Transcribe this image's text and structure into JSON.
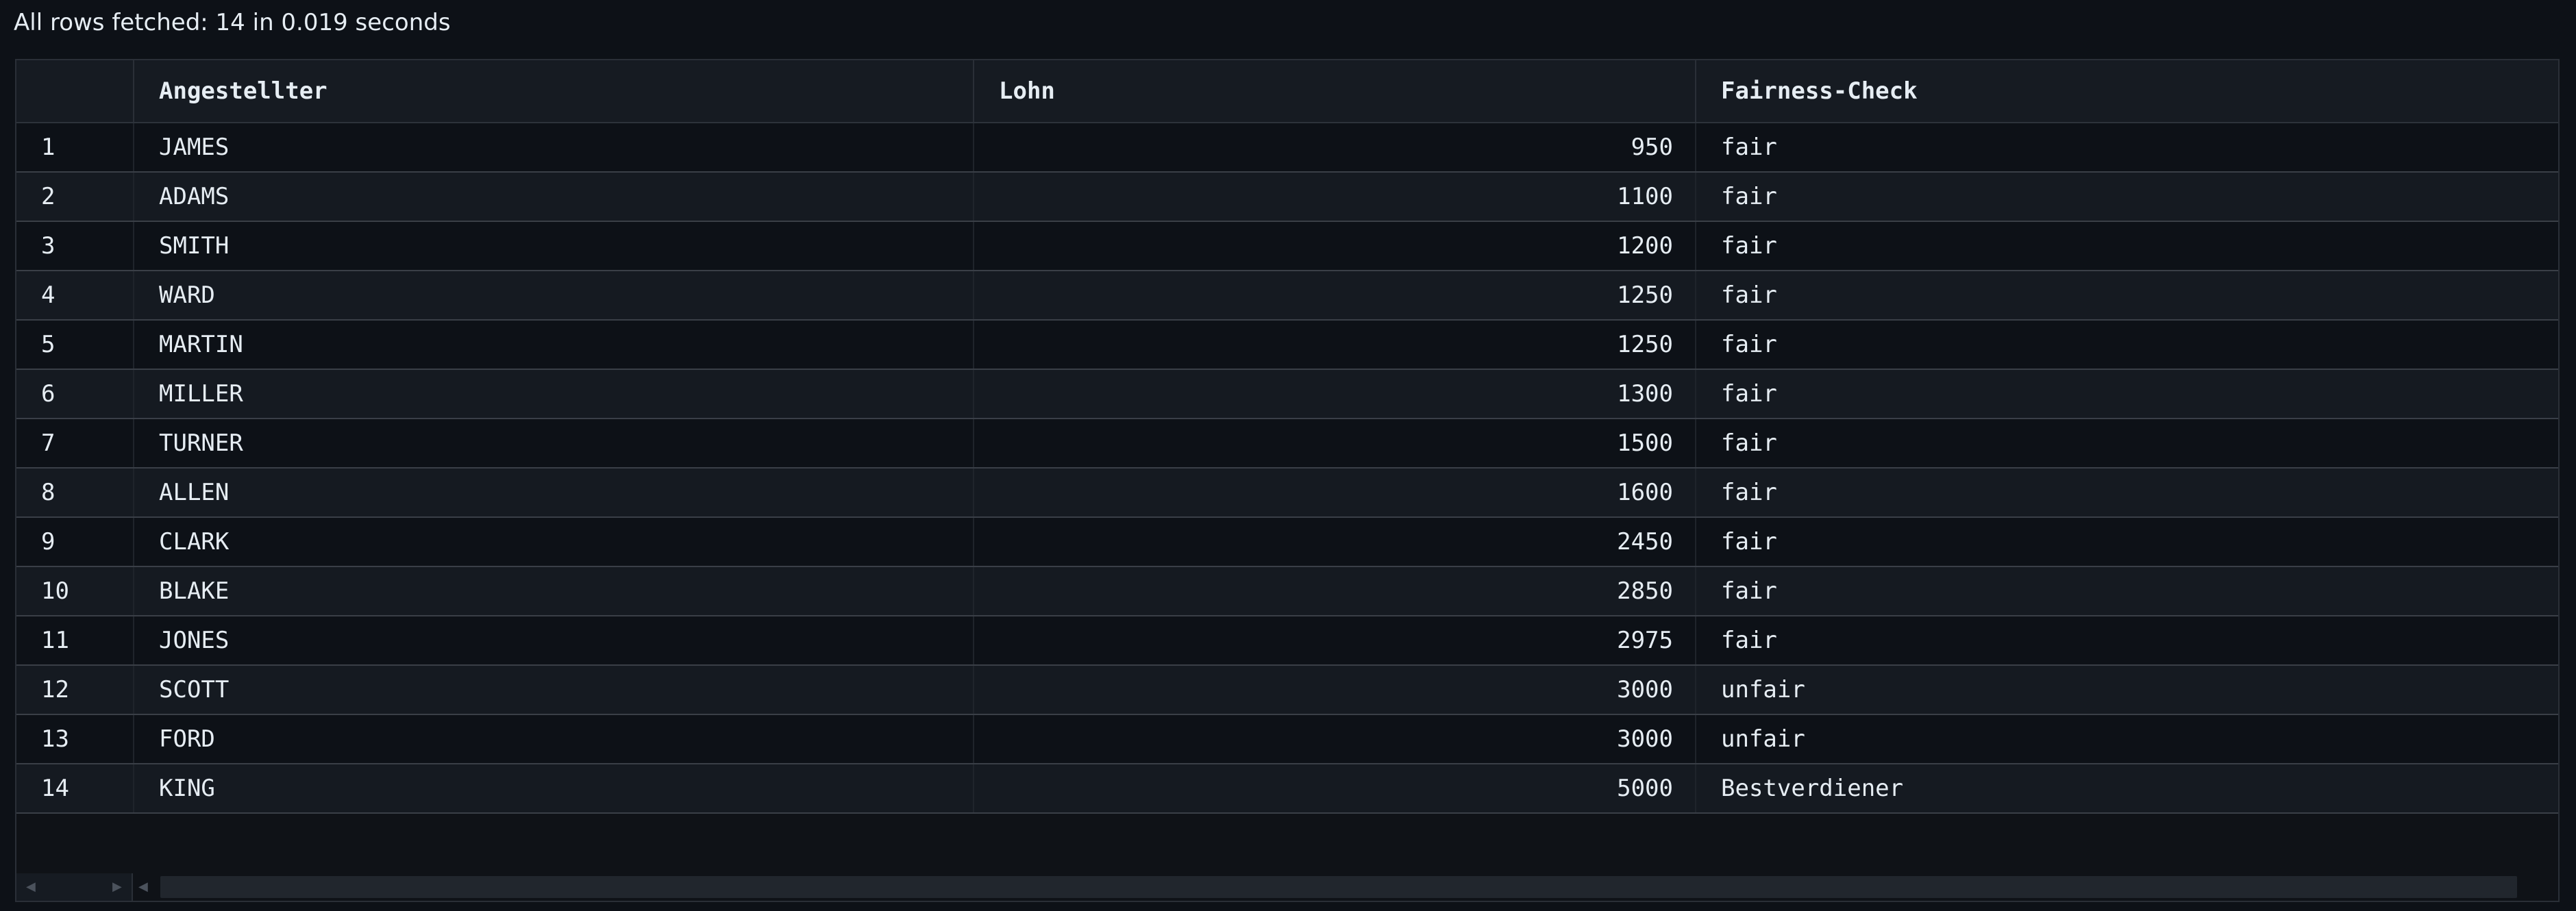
{
  "status_text": "All rows fetched: 14 in 0.019 seconds",
  "columns": {
    "index": "",
    "employee": "Angestellter",
    "salary": "Lohn",
    "fairness": "Fairness-Check"
  },
  "rows": [
    {
      "n": "1",
      "name": "JAMES",
      "salary": "950",
      "check": "fair"
    },
    {
      "n": "2",
      "name": "ADAMS",
      "salary": "1100",
      "check": "fair"
    },
    {
      "n": "3",
      "name": "SMITH",
      "salary": "1200",
      "check": "fair"
    },
    {
      "n": "4",
      "name": "WARD",
      "salary": "1250",
      "check": "fair"
    },
    {
      "n": "5",
      "name": "MARTIN",
      "salary": "1250",
      "check": "fair"
    },
    {
      "n": "6",
      "name": "MILLER",
      "salary": "1300",
      "check": "fair"
    },
    {
      "n": "7",
      "name": "TURNER",
      "salary": "1500",
      "check": "fair"
    },
    {
      "n": "8",
      "name": "ALLEN",
      "salary": "1600",
      "check": "fair"
    },
    {
      "n": "9",
      "name": "CLARK",
      "salary": "2450",
      "check": "fair"
    },
    {
      "n": "10",
      "name": "BLAKE",
      "salary": "2850",
      "check": "fair"
    },
    {
      "n": "11",
      "name": "JONES",
      "salary": "2975",
      "check": "fair"
    },
    {
      "n": "12",
      "name": "SCOTT",
      "salary": "3000",
      "check": "unfair"
    },
    {
      "n": "13",
      "name": "FORD",
      "salary": "3000",
      "check": "unfair"
    },
    {
      "n": "14",
      "name": "KING",
      "salary": "5000",
      "check": "Bestverdiener"
    }
  ],
  "icons": {
    "scroll_left": "chevron-left-icon",
    "scroll_right": "chevron-right-icon"
  },
  "colors": {
    "background": "#0d1117",
    "header": "#161b22",
    "text": "#e6edf3"
  }
}
